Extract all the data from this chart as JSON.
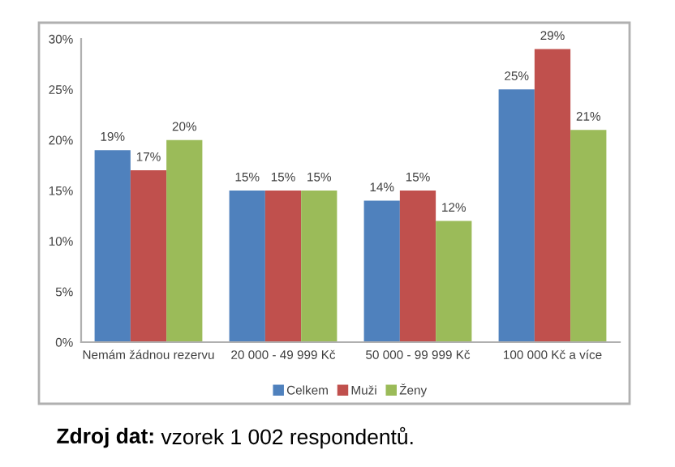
{
  "chart_data": {
    "type": "bar",
    "categories": [
      "Nemám žádnou rezervu",
      "20 000 - 49 999 Kč",
      "50 000 - 99 999 Kč",
      "100 000 Kč a více"
    ],
    "series": [
      {
        "name": "Celkem",
        "color": "#4f81bd",
        "values": [
          19,
          15,
          14,
          25
        ],
        "value_labels": [
          "19%",
          "15%",
          "14%",
          "25%"
        ]
      },
      {
        "name": "Muži",
        "color": "#c0504d",
        "values": [
          17,
          15,
          15,
          29
        ],
        "value_labels": [
          "17%",
          "15%",
          "15%",
          "29%"
        ]
      },
      {
        "name": "Ženy",
        "color": "#9bbb59",
        "values": [
          20,
          15,
          12,
          21
        ],
        "value_labels": [
          "20%",
          "15%",
          "12%",
          "21%"
        ]
      }
    ],
    "ylim": [
      0,
      30
    ],
    "yticks": [
      {
        "value": 0,
        "label": "0%"
      },
      {
        "value": 5,
        "label": "5%"
      },
      {
        "value": 10,
        "label": "10%"
      },
      {
        "value": 15,
        "label": "15%"
      },
      {
        "value": 20,
        "label": "20%"
      },
      {
        "value": 25,
        "label": "25%"
      },
      {
        "value": 30,
        "label": "30%"
      }
    ],
    "grid": false,
    "legend": "bottom",
    "annotations": [
      "Zdroj dat:",
      "vzorek 1 002 respondentů."
    ]
  }
}
